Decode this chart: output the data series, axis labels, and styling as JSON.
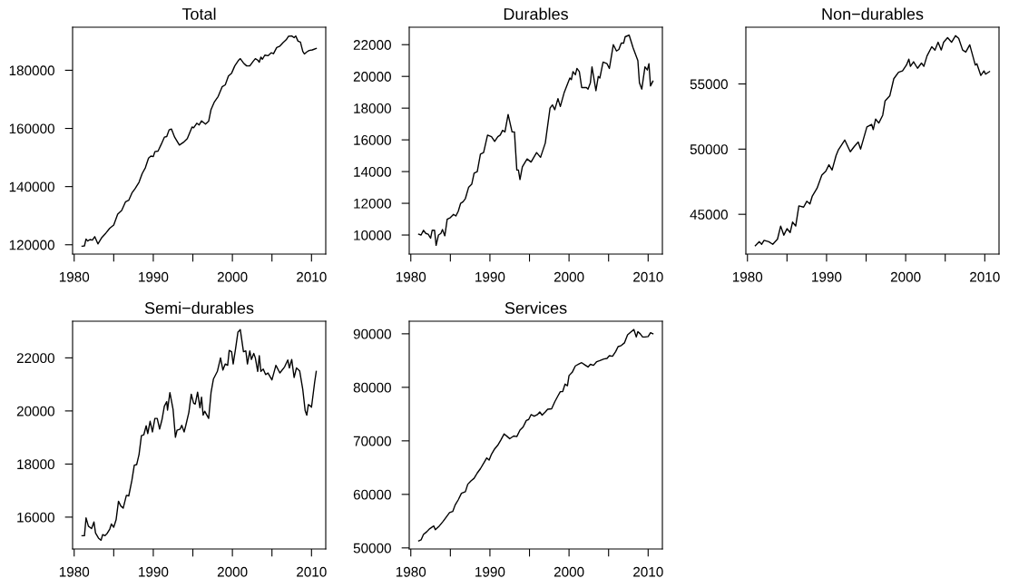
{
  "chart_data": [
    {
      "type": "line",
      "title": "Total",
      "color": "#000000",
      "xlim": [
        1979.8,
        2011.8
      ],
      "ylim": [
        116800,
        194800
      ],
      "xticks": [
        1980,
        {
          "value": 1985,
          "label": null
        },
        1990,
        {
          "value": 1995,
          "label": null
        },
        2000,
        {
          "value": 2005,
          "label": null
        },
        2010
      ],
      "yticks": [
        120000,
        140000,
        160000,
        180000
      ],
      "x": [
        1981.0,
        1981.3,
        1981.5,
        1981.7,
        1982.0,
        1982.3,
        1982.6,
        1983.0,
        1983.5,
        1984.0,
        1984.5,
        1985.0,
        1985.5,
        1986.0,
        1986.5,
        1986.9,
        1987.3,
        1987.7,
        1988.2,
        1988.6,
        1989.0,
        1989.4,
        1989.7,
        1990.0,
        1990.2,
        1990.6,
        1991.0,
        1991.4,
        1991.7,
        1992.0,
        1992.3,
        1992.7,
        1993.3,
        1993.8,
        1994.3,
        1994.9,
        1995.1,
        1995.5,
        1995.8,
        1996.1,
        1996.6,
        1997.0,
        1997.3,
        1997.7,
        1998.2,
        1998.7,
        1999.1,
        1999.5,
        1999.9,
        2000.3,
        2000.8,
        2001.0,
        2001.4,
        2001.8,
        2002.2,
        2002.6,
        2002.9,
        2003.2,
        2003.4,
        2003.6,
        2003.8,
        2004.1,
        2004.5,
        2004.9,
        2005.2,
        2005.6,
        2006.0,
        2006.4,
        2006.8,
        2007.1,
        2007.5,
        2007.8,
        2008.0,
        2008.3,
        2008.6,
        2008.9,
        2009.1,
        2009.4,
        2009.7,
        2010.1,
        2010.6
      ],
      "values": [
        119500,
        119600,
        122000,
        121300,
        121800,
        121600,
        122800,
        120300,
        122500,
        124000,
        125700,
        126800,
        130500,
        131800,
        134800,
        135300,
        137800,
        139300,
        141500,
        144500,
        146500,
        149800,
        150500,
        150300,
        152000,
        152200,
        154500,
        157000,
        157200,
        159500,
        159800,
        157000,
        154300,
        155200,
        156500,
        160500,
        160200,
        161800,
        161200,
        162600,
        161500,
        162500,
        166500,
        169000,
        171000,
        174300,
        175000,
        178000,
        179000,
        181500,
        183500,
        184000,
        182500,
        181500,
        181500,
        183000,
        184000,
        183500,
        182800,
        184500,
        183800,
        185200,
        185000,
        186000,
        185700,
        187800,
        188300,
        189500,
        190500,
        191700,
        191800,
        191200,
        191800,
        190000,
        189700,
        186500,
        185600,
        186300,
        186800,
        187000,
        187500
      ]
    },
    {
      "type": "line",
      "title": "Durables",
      "color": "#000000",
      "xlim": [
        1979.8,
        2011.8
      ],
      "ylim": [
        8800,
        23100
      ],
      "xticks": [
        1980,
        {
          "value": 1985,
          "label": null
        },
        1990,
        {
          "value": 1995,
          "label": null
        },
        2000,
        {
          "value": 2005,
          "label": null
        },
        2010
      ],
      "yticks": [
        10000,
        12000,
        14000,
        16000,
        18000,
        20000,
        22000
      ],
      "x": [
        1981.0,
        1981.3,
        1981.6,
        1981.9,
        1982.2,
        1982.5,
        1982.7,
        1983.0,
        1983.2,
        1983.5,
        1983.8,
        1984.0,
        1984.3,
        1984.6,
        1985.0,
        1985.4,
        1985.7,
        1986.0,
        1986.3,
        1986.6,
        1986.9,
        1987.3,
        1987.7,
        1988.0,
        1988.4,
        1988.8,
        1989.2,
        1989.7,
        1990.2,
        1990.6,
        1991.0,
        1991.3,
        1991.6,
        1991.9,
        1992.3,
        1992.8,
        1993.1,
        1993.4,
        1993.6,
        1993.8,
        1994.1,
        1994.7,
        1995.2,
        1995.9,
        1996.4,
        1997.0,
        1997.6,
        1997.9,
        1998.2,
        1998.6,
        1998.9,
        1999.4,
        2000.1,
        2000.3,
        2000.5,
        2000.8,
        2001.0,
        2001.3,
        2001.6,
        2002.2,
        2002.4,
        2002.7,
        2002.9,
        2003.1,
        2003.4,
        2003.7,
        2003.9,
        2004.3,
        2004.8,
        2005.1,
        2005.6,
        2006.0,
        2006.3,
        2006.6,
        2006.9,
        2007.1,
        2007.6,
        2008.1,
        2008.7,
        2008.9,
        2009.2,
        2009.6,
        2009.9,
        2010.1,
        2010.3,
        2010.6
      ],
      "values": [
        10050,
        10000,
        10300,
        10100,
        10050,
        9800,
        10300,
        10300,
        9350,
        10000,
        10100,
        10350,
        9950,
        11000,
        11100,
        11300,
        11200,
        11500,
        12000,
        12100,
        12300,
        13000,
        13200,
        13900,
        14000,
        15100,
        15200,
        16300,
        16200,
        15900,
        16200,
        16300,
        16600,
        16500,
        17600,
        16500,
        16500,
        14100,
        14100,
        13500,
        14300,
        14800,
        14600,
        15200,
        14900,
        15800,
        18000,
        18200,
        17900,
        18600,
        18100,
        19000,
        19900,
        19800,
        20300,
        20100,
        20500,
        20300,
        19300,
        19300,
        19200,
        19600,
        20600,
        20000,
        19100,
        20000,
        19900,
        20900,
        20800,
        20500,
        22000,
        21600,
        21700,
        22100,
        22100,
        22500,
        22600,
        21800,
        21000,
        19600,
        19200,
        20600,
        20400,
        20800,
        19400,
        19700
      ]
    },
    {
      "type": "line",
      "title": "Non−durables",
      "color": "#000000",
      "xlim": [
        1979.8,
        2011.8
      ],
      "ylim": [
        41950,
        59350
      ],
      "xticks": [
        1980,
        {
          "value": 1985,
          "label": null
        },
        1990,
        {
          "value": 1995,
          "label": null
        },
        2000,
        {
          "value": 2005,
          "label": null
        },
        2010
      ],
      "yticks": [
        45000,
        50000,
        55000
      ],
      "x": [
        1981.0,
        1981.5,
        1981.8,
        1982.1,
        1982.7,
        1983.2,
        1983.8,
        1984.2,
        1984.6,
        1985.0,
        1985.4,
        1985.7,
        1986.1,
        1986.5,
        1987.1,
        1987.5,
        1987.9,
        1988.2,
        1988.8,
        1989.4,
        1989.9,
        1990.3,
        1990.7,
        1991.2,
        1991.5,
        1992.3,
        1993.0,
        1993.5,
        1994.0,
        1994.3,
        1995.1,
        1995.7,
        1995.9,
        1996.2,
        1996.6,
        1997.1,
        1997.4,
        1998.0,
        1998.5,
        1999.1,
        1999.6,
        2000.1,
        2000.4,
        2000.6,
        2001.0,
        2001.5,
        2002.0,
        2002.3,
        2002.7,
        2003.3,
        2003.7,
        2004.1,
        2004.5,
        2004.8,
        2005.3,
        2005.8,
        2006.3,
        2006.7,
        2007.2,
        2007.6,
        2008.1,
        2008.8,
        2009.0,
        2009.5,
        2009.9,
        2010.1,
        2010.6
      ],
      "values": [
        42600,
        42900,
        42700,
        43000,
        42900,
        42700,
        43100,
        44100,
        43400,
        43900,
        43600,
        44400,
        44100,
        45650,
        45550,
        46000,
        45800,
        46400,
        47000,
        48000,
        48300,
        48800,
        48400,
        49500,
        49950,
        50700,
        49800,
        50200,
        50550,
        50000,
        51700,
        51900,
        51500,
        52300,
        52000,
        52600,
        53700,
        54100,
        55400,
        55900,
        56000,
        56450,
        56900,
        56350,
        56700,
        56200,
        56600,
        56350,
        57150,
        57850,
        57600,
        58200,
        57600,
        58200,
        58550,
        58200,
        58700,
        58500,
        57600,
        57450,
        58000,
        56450,
        56550,
        55650,
        56000,
        55750,
        55950
      ]
    },
    {
      "type": "line",
      "title": "Semi−durables",
      "color": "#000000",
      "xlim": [
        1979.8,
        2011.8
      ],
      "ylim": [
        14800,
        23380
      ],
      "xticks": [
        1980,
        {
          "value": 1985,
          "label": null
        },
        1990,
        {
          "value": 1995,
          "label": null
        },
        2000,
        {
          "value": 2005,
          "label": null
        },
        2010
      ],
      "yticks": [
        16000,
        18000,
        20000,
        22000
      ],
      "x": [
        1981.0,
        1981.3,
        1981.5,
        1981.8,
        1982.2,
        1982.5,
        1982.7,
        1983.1,
        1983.4,
        1983.6,
        1983.9,
        1984.2,
        1984.5,
        1984.7,
        1985.0,
        1985.3,
        1985.6,
        1985.9,
        1986.2,
        1986.6,
        1986.9,
        1987.3,
        1987.6,
        1987.9,
        1988.2,
        1988.5,
        1988.8,
        1989.1,
        1989.3,
        1989.6,
        1989.9,
        1990.2,
        1990.5,
        1990.8,
        1991.1,
        1991.4,
        1991.7,
        1991.8,
        1992.1,
        1992.5,
        1992.8,
        1993.0,
        1993.4,
        1993.6,
        1993.9,
        1994.1,
        1994.5,
        1994.8,
        1995.1,
        1995.3,
        1995.6,
        1995.9,
        1996.1,
        1996.3,
        1996.5,
        1997.0,
        1997.3,
        1997.6,
        1998.1,
        1998.5,
        1998.8,
        1999.1,
        1999.4,
        1999.6,
        1999.9,
        2000.1,
        2000.4,
        2000.7,
        2001.0,
        2001.4,
        2001.7,
        2001.9,
        2002.2,
        2002.4,
        2002.7,
        2002.9,
        2003.2,
        2003.4,
        2003.6,
        2003.9,
        2004.2,
        2004.5,
        2005.0,
        2005.5,
        2006.0,
        2006.6,
        2007.0,
        2007.2,
        2007.5,
        2007.8,
        2008.1,
        2008.5,
        2008.9,
        2009.2,
        2009.4,
        2009.6,
        2009.9,
        2010.0,
        2010.4,
        2010.6
      ],
      "values": [
        15300,
        15300,
        15970,
        15660,
        15570,
        15820,
        15400,
        15200,
        15130,
        15340,
        15300,
        15400,
        15550,
        15740,
        15620,
        15900,
        16600,
        16420,
        16340,
        16820,
        16800,
        17390,
        17960,
        17980,
        18360,
        19070,
        19100,
        19440,
        19150,
        19610,
        19210,
        19720,
        19720,
        19320,
        19670,
        20180,
        20350,
        20030,
        20690,
        20060,
        19010,
        19270,
        19320,
        19460,
        19210,
        19440,
        19950,
        20630,
        20290,
        20260,
        20710,
        20120,
        20520,
        19840,
        19990,
        19720,
        20690,
        21200,
        21490,
        22000,
        21540,
        21770,
        21720,
        22280,
        22230,
        21770,
        22340,
        22970,
        23060,
        22230,
        22260,
        21770,
        22260,
        21940,
        22170,
        22000,
        21490,
        22080,
        21490,
        21580,
        21370,
        21430,
        21170,
        21720,
        21430,
        21660,
        21920,
        21620,
        21940,
        21260,
        21620,
        21510,
        20800,
        20010,
        19840,
        20240,
        20180,
        20140,
        21090,
        21490
      ]
    },
    {
      "type": "line",
      "title": "Services",
      "color": "#000000",
      "xlim": [
        1979.8,
        2011.8
      ],
      "ylim": [
        49800,
        92350
      ],
      "xticks": [
        1980,
        {
          "value": 1985,
          "label": null
        },
        1990,
        {
          "value": 1995,
          "label": null
        },
        2000,
        {
          "value": 2005,
          "label": null
        },
        2010
      ],
      "yticks": [
        50000,
        60000,
        70000,
        80000,
        90000
      ],
      "x": [
        1981.0,
        1981.3,
        1981.6,
        1982.0,
        1982.4,
        1982.9,
        1983.1,
        1983.6,
        1984.1,
        1984.5,
        1984.9,
        1985.3,
        1985.6,
        1986.0,
        1986.4,
        1986.9,
        1987.2,
        1987.6,
        1988.0,
        1988.4,
        1988.8,
        1989.2,
        1989.6,
        1989.9,
        1990.2,
        1990.6,
        1991.0,
        1991.4,
        1991.8,
        1992.2,
        1992.5,
        1993.0,
        1993.4,
        1993.8,
        1994.2,
        1994.6,
        1994.9,
        1995.2,
        1995.6,
        1996.0,
        1996.3,
        1996.6,
        1997.0,
        1997.3,
        1997.8,
        1998.2,
        1998.6,
        1998.9,
        1999.2,
        1999.5,
        1999.8,
        2000.0,
        2000.4,
        2000.8,
        2001.3,
        2001.6,
        2002.0,
        2002.4,
        2002.7,
        2003.1,
        2003.5,
        2003.9,
        2004.4,
        2004.8,
        2005.1,
        2005.5,
        2005.9,
        2006.2,
        2006.6,
        2007.0,
        2007.4,
        2007.8,
        2008.2,
        2008.5,
        2008.7,
        2009.0,
        2009.3,
        2009.6,
        2010.0,
        2010.3,
        2010.6
      ],
      "values": [
        51300,
        51500,
        52500,
        53000,
        53600,
        54100,
        53400,
        54100,
        55000,
        55800,
        56600,
        56800,
        58000,
        59000,
        60200,
        60500,
        61900,
        62500,
        63000,
        64000,
        64800,
        65800,
        66800,
        66400,
        67500,
        68500,
        69200,
        70200,
        71300,
        70800,
        70400,
        70900,
        70800,
        72000,
        72600,
        73800,
        74000,
        74900,
        74600,
        74900,
        75400,
        74800,
        75400,
        75900,
        76000,
        77300,
        78400,
        79200,
        79200,
        80600,
        80300,
        82200,
        82800,
        84000,
        84400,
        84600,
        84200,
        83800,
        84300,
        84100,
        84800,
        85000,
        85300,
        85400,
        85900,
        85800,
        86700,
        87600,
        87800,
        88300,
        89800,
        90300,
        90800,
        89400,
        90400,
        90000,
        89400,
        89400,
        89500,
        90200,
        90000
      ]
    }
  ]
}
